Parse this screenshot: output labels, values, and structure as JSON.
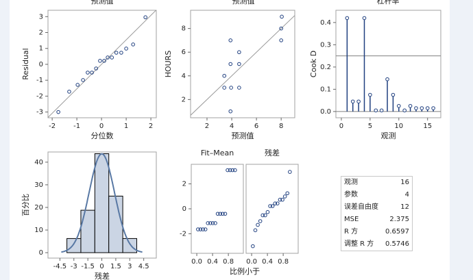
{
  "header_fragments": [
    "预测值",
    "预测值",
    "杠杆率"
  ],
  "chart_data": [
    {
      "type": "scatter",
      "xlabel": "分位数",
      "ylabel": "Residual",
      "x": [
        -1.75,
        -1.31,
        -0.97,
        -0.75,
        -0.56,
        -0.39,
        -0.22,
        -0.06,
        0.11,
        0.25,
        0.42,
        0.6,
        0.8,
        1.0,
        1.28,
        1.78
      ],
      "values": [
        -3.0,
        -1.72,
        -1.29,
        -0.99,
        -0.52,
        -0.52,
        -0.26,
        0.22,
        0.22,
        0.43,
        0.43,
        0.73,
        0.73,
        0.99,
        1.25,
        2.96
      ],
      "reference_line": {
        "slope": 1.54,
        "intercept": 0
      },
      "xlim": [
        -2.17,
        2.22
      ],
      "ylim": [
        -3.36,
        3.4
      ],
      "xticks": [
        -2,
        -1,
        0,
        1,
        2
      ],
      "yticks": [
        -3,
        -2,
        -1,
        0,
        1,
        2,
        3
      ]
    },
    {
      "type": "scatter",
      "xlabel": "预测值",
      "ylabel": "HOURS",
      "x": [
        3.9,
        3.4,
        3.95,
        4.6,
        3.4,
        3.9,
        4.6,
        4.6,
        3.9,
        8.0,
        8.0,
        8.05
      ],
      "values": [
        1,
        3,
        3,
        3,
        4,
        5,
        5,
        6,
        7,
        7,
        8,
        9
      ],
      "reference_line": {
        "slope": 1,
        "intercept": 0
      },
      "xlim": [
        0.67,
        9.1
      ],
      "ylim": [
        0.46,
        9.54
      ],
      "xticks": [
        2,
        4,
        6,
        8
      ],
      "yticks": [
        2,
        4,
        6,
        8
      ]
    },
    {
      "type": "needle",
      "xlabel": "观测",
      "ylabel": "Cook D",
      "x": [
        1,
        2,
        3,
        4,
        5,
        6,
        7,
        8,
        9,
        10,
        11,
        12,
        13,
        14,
        15,
        16
      ],
      "values": [
        0.42,
        0.045,
        0.045,
        0.42,
        0.075,
        0.005,
        0.005,
        0.145,
        0.075,
        0.025,
        0.005,
        0.025,
        0.015,
        0.015,
        0.015,
        0.015
      ],
      "threshold": 0.25,
      "xlim": [
        -0.95,
        17.3
      ],
      "ylim": [
        -0.028,
        0.455
      ],
      "xticks": [
        0,
        5,
        10,
        15
      ],
      "yticks": [
        {
          "value": 0,
          "label": "0.0"
        },
        0.1,
        0.2,
        0.3,
        0.4
      ]
    },
    {
      "type": "histogram",
      "xlabel": "残差",
      "ylabel": "百分比",
      "bins": [
        -3.75,
        -2.25,
        -0.75,
        0.75,
        2.25,
        3.75
      ],
      "values": [
        6.25,
        18.75,
        43.75,
        25,
        6.25
      ],
      "normal_curve": {
        "mean": 0,
        "sd": 1.37
      },
      "xlim": [
        -5.78,
        5.85
      ],
      "ylim": [
        -2.4,
        44.5
      ],
      "xticks": [
        -4.5,
        -3,
        -1.5,
        0,
        1.5,
        3,
        4.5
      ],
      "yticks": [
        0,
        10,
        20,
        30,
        40
      ]
    },
    {
      "type": "spread",
      "xlabel": "比例小于",
      "panels": [
        {
          "title": "Fit–Mean",
          "x": [
            0.031,
            0.094,
            0.156,
            0.219,
            0.281,
            0.344,
            0.406,
            0.469,
            0.531,
            0.594,
            0.656,
            0.719,
            0.781,
            0.844,
            0.906,
            0.969
          ],
          "values": [
            -1.65,
            -1.65,
            -1.65,
            -1.65,
            -1.15,
            -1.15,
            -1.15,
            -1.15,
            -0.4,
            -0.4,
            -0.4,
            -0.4,
            3.1,
            3.1,
            3.1,
            3.1
          ]
        },
        {
          "title": "残差",
          "x": [
            0.031,
            0.094,
            0.156,
            0.219,
            0.281,
            0.344,
            0.406,
            0.469,
            0.531,
            0.594,
            0.656,
            0.719,
            0.781,
            0.844,
            0.906,
            0.969
          ],
          "values": [
            -3.0,
            -1.72,
            -1.29,
            -0.99,
            -0.52,
            -0.52,
            -0.26,
            0.22,
            0.22,
            0.43,
            0.43,
            0.73,
            0.73,
            0.99,
            1.25,
            2.96
          ]
        }
      ],
      "xlim": [
        -0.14,
        1.18
      ],
      "ylim": [
        -3.57,
        3.57
      ],
      "xticks": [
        {
          "value": 0,
          "label": "0.0"
        },
        0.4,
        0.8
      ],
      "yticks": [
        -2,
        0,
        2
      ]
    }
  ],
  "table": {
    "rows": [
      [
        "观测",
        "16"
      ],
      [
        "参数",
        "4"
      ],
      [
        "误差自由度",
        "12"
      ],
      [
        "MSE",
        "2.375"
      ],
      [
        "R 方",
        "0.6597"
      ],
      [
        "调整 R 方",
        "0.5746"
      ]
    ]
  }
}
